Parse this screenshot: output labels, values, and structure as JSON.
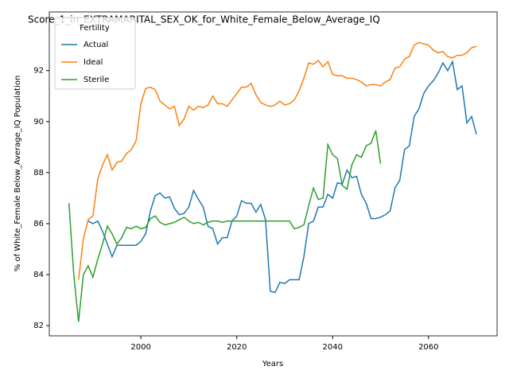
{
  "chart_data": {
    "type": "line",
    "title": "Score_1_in_EXTRAMARITAL_SEX_OK_for_White_Female_Below_Average_IQ",
    "xlabel": "Years",
    "ylabel": "% of White_Female Below_Average_IQ Population",
    "legend_title": "Fertility",
    "legend": "upper left",
    "x": [
      1985,
      1986,
      1987,
      1988,
      1989,
      1990,
      1991,
      1992,
      1993,
      1994,
      1995,
      1996,
      1997,
      1998,
      1999,
      2000,
      2001,
      2002,
      2003,
      2004,
      2005,
      2006,
      2007,
      2008,
      2009,
      2010,
      2011,
      2012,
      2013,
      2014,
      2015,
      2016,
      2017,
      2018,
      2019,
      2020,
      2021,
      2022,
      2023,
      2024,
      2025,
      2026,
      2027,
      2028,
      2029,
      2030,
      2031,
      2032,
      2033,
      2034,
      2035,
      2036,
      2037,
      2038,
      2039,
      2040,
      2041,
      2042,
      2043,
      2044,
      2045,
      2046,
      2047,
      2048,
      2049,
      2050,
      2051,
      2052,
      2053,
      2054,
      2055,
      2056,
      2057,
      2058,
      2059,
      2060,
      2061,
      2062,
      2063,
      2064,
      2065,
      2066,
      2067,
      2068,
      2069,
      2070
    ],
    "series": [
      {
        "name": "Actual",
        "color": "#1f77b4",
        "values": [
          null,
          null,
          null,
          null,
          86.1,
          86.0,
          86.1,
          85.7,
          85.2,
          84.7,
          85.15,
          85.15,
          85.15,
          85.15,
          85.15,
          85.3,
          85.6,
          86.5,
          87.1,
          87.2,
          87.0,
          87.05,
          86.6,
          86.35,
          86.4,
          86.65,
          87.3,
          86.95,
          86.65,
          85.9,
          85.8,
          85.2,
          85.45,
          85.45,
          86.1,
          86.3,
          86.9,
          86.8,
          86.8,
          86.45,
          86.75,
          86.15,
          83.35,
          83.3,
          83.7,
          83.65,
          83.8,
          83.8,
          83.8,
          84.7,
          86.0,
          86.1,
          86.65,
          86.65,
          87.15,
          87.0,
          87.6,
          87.55,
          88.1,
          87.8,
          87.85,
          87.15,
          86.8,
          86.2,
          86.2,
          86.25,
          86.35,
          86.5,
          87.4,
          87.7,
          88.9,
          89.05,
          90.2,
          90.5,
          91.1,
          91.4,
          91.6,
          91.9,
          92.3,
          92.0,
          92.35,
          91.25,
          91.4,
          89.95,
          90.2,
          89.5
        ]
      },
      {
        "name": "Ideal",
        "color": "#ff7f0e",
        "values": [
          null,
          null,
          83.8,
          85.4,
          86.15,
          86.3,
          87.75,
          88.3,
          88.7,
          88.1,
          88.4,
          88.45,
          88.75,
          88.9,
          89.25,
          90.7,
          91.3,
          91.35,
          91.25,
          90.8,
          90.65,
          90.5,
          90.6,
          89.85,
          90.1,
          90.6,
          90.45,
          90.6,
          90.55,
          90.65,
          91.0,
          90.7,
          90.7,
          90.6,
          90.85,
          91.1,
          91.35,
          91.35,
          91.5,
          91.05,
          90.75,
          90.65,
          90.6,
          90.65,
          90.8,
          90.65,
          90.7,
          90.85,
          91.2,
          91.7,
          92.3,
          92.25,
          92.4,
          92.15,
          92.35,
          91.85,
          91.8,
          91.8,
          91.7,
          91.7,
          91.65,
          91.55,
          91.4,
          91.45,
          91.45,
          91.4,
          91.55,
          91.65,
          92.1,
          92.15,
          92.45,
          92.55,
          93.0,
          93.1,
          93.05,
          93.0,
          92.8,
          92.7,
          92.75,
          92.55,
          92.5,
          92.6,
          92.6,
          92.7,
          92.9,
          92.95
        ]
      },
      {
        "name": "Sterile",
        "color": "#2ca02c",
        "values": [
          86.8,
          84.0,
          82.15,
          84.0,
          84.35,
          83.9,
          84.6,
          85.2,
          85.9,
          85.6,
          85.2,
          85.45,
          85.85,
          85.8,
          85.9,
          85.8,
          85.85,
          86.2,
          86.3,
          86.05,
          85.95,
          86.0,
          86.05,
          86.15,
          86.25,
          86.1,
          86.0,
          86.05,
          85.95,
          86.05,
          86.1,
          86.1,
          86.05,
          86.1,
          86.1,
          86.1,
          86.1,
          86.1,
          86.1,
          86.1,
          86.1,
          86.1,
          86.1,
          86.1,
          86.1,
          86.1,
          86.1,
          85.8,
          85.85,
          85.95,
          86.7,
          87.4,
          86.95,
          87.0,
          89.1,
          88.7,
          88.55,
          87.5,
          87.35,
          88.3,
          88.7,
          88.6,
          89.05,
          89.15,
          89.65,
          88.35,
          null,
          null,
          null,
          null,
          null,
          null,
          null,
          null,
          null,
          null,
          null,
          null,
          null,
          null,
          null,
          null,
          null,
          null,
          null,
          null
        ]
      }
    ],
    "xlim": [
      1980.9,
      2074.3
    ],
    "ylim": [
      81.6,
      94.3
    ],
    "xticks": [
      2000,
      2020,
      2040,
      2060
    ],
    "yticks": [
      82,
      84,
      86,
      88,
      90,
      92
    ]
  }
}
